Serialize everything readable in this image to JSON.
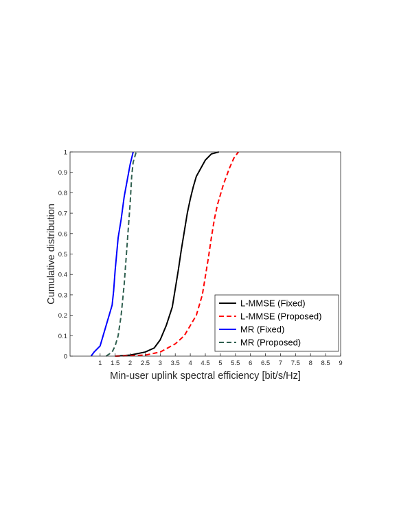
{
  "chart_data": {
    "type": "line",
    "title": "",
    "xlabel": "Min-user uplink spectral efficiency [bit/s/Hz]",
    "ylabel": "Cumulative distribution",
    "xlim": [
      0,
      9
    ],
    "ylim": [
      0,
      1
    ],
    "xticks": [
      1,
      1.5,
      2,
      2.5,
      3,
      3.5,
      4,
      4.5,
      5,
      5.5,
      6,
      6.5,
      7,
      7.5,
      8,
      8.5,
      9
    ],
    "xtick_labels": [
      "1",
      "1.5",
      "2",
      "2.5",
      "3",
      "3.5",
      "4",
      "4.5",
      "5",
      "5.5",
      "6",
      "6.5",
      "7",
      "7.5",
      "8",
      "8.5",
      "9"
    ],
    "yticks": [
      0,
      0.1,
      0.2,
      0.3,
      0.4,
      0.5,
      0.6,
      0.7,
      0.8,
      0.9,
      1
    ],
    "ytick_labels": [
      "0",
      "0.1",
      "0.2",
      "0.3",
      "0.4",
      "0.5",
      "0.6",
      "0.7",
      "0.8",
      "0.9",
      "1"
    ],
    "grid": false,
    "legend": "bottom-right",
    "series": [
      {
        "name": "L-MMSE (Fixed)",
        "color": "#000000",
        "dash": "solid",
        "x": [
          1.5,
          2.0,
          2.5,
          2.8,
          3.0,
          3.2,
          3.4,
          3.5,
          3.6,
          3.7,
          3.8,
          3.9,
          4.0,
          4.1,
          4.2,
          4.35,
          4.5,
          4.7,
          4.95
        ],
        "y": [
          0,
          0.005,
          0.02,
          0.04,
          0.08,
          0.15,
          0.24,
          0.33,
          0.42,
          0.52,
          0.61,
          0.7,
          0.77,
          0.83,
          0.88,
          0.92,
          0.96,
          0.99,
          1.0
        ]
      },
      {
        "name": "L-MMSE (Proposed)",
        "color": "#ff0000",
        "dash": "dashed",
        "x": [
          1.5,
          2.5,
          3.0,
          3.5,
          3.8,
          4.0,
          4.2,
          4.4,
          4.5,
          4.6,
          4.7,
          4.8,
          4.9,
          5.0,
          5.1,
          5.2,
          5.3,
          5.45,
          5.6
        ],
        "y": [
          0,
          0.005,
          0.02,
          0.06,
          0.1,
          0.15,
          0.2,
          0.3,
          0.39,
          0.48,
          0.58,
          0.67,
          0.74,
          0.79,
          0.84,
          0.88,
          0.92,
          0.97,
          1.0
        ]
      },
      {
        "name": "MR (Fixed)",
        "color": "#0000ff",
        "dash": "solid",
        "x": [
          0.7,
          0.8,
          1.0,
          1.1,
          1.2,
          1.3,
          1.4,
          1.45,
          1.5,
          1.55,
          1.6,
          1.7,
          1.8,
          1.9,
          2.0,
          2.1
        ],
        "y": [
          0,
          0.02,
          0.05,
          0.1,
          0.15,
          0.2,
          0.25,
          0.32,
          0.42,
          0.5,
          0.58,
          0.67,
          0.78,
          0.86,
          0.94,
          1.0
        ]
      },
      {
        "name": "MR (Proposed)",
        "color": "#2f5f4f",
        "dash": "dashed",
        "x": [
          1.2,
          1.4,
          1.5,
          1.6,
          1.7,
          1.8,
          1.9,
          2.0,
          2.05,
          2.1,
          2.2
        ],
        "y": [
          0,
          0.02,
          0.05,
          0.1,
          0.2,
          0.35,
          0.55,
          0.75,
          0.88,
          0.95,
          1.0
        ]
      }
    ]
  }
}
